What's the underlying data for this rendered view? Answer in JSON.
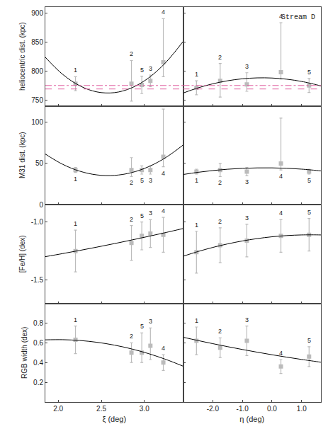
{
  "chart_data": [
    {
      "type": "scatter",
      "ylabel": "heliocentric dist. (kpc)",
      "grid": false,
      "tick_labels": "y",
      "xlim": [
        1.85,
        3.45
      ],
      "xticks": [
        {
          "value": 2.0,
          "label": "2.0"
        },
        2.5,
        {
          "value": 3.0,
          "label": "3.0"
        }
      ],
      "ylim": [
        740,
        910
      ],
      "yticks": [
        750,
        800,
        850,
        900
      ],
      "series": [
        {
          "type": "scatter",
          "marker": "square",
          "color": "#bbbbbb",
          "x": [
            2.2,
            2.85,
            2.97,
            3.07,
            3.22
          ],
          "values": [
            778,
            778,
            776,
            783,
            815
          ],
          "error_minus": [
            12,
            30,
            15,
            10,
            25
          ],
          "error_plus": [
            12,
            40,
            15,
            10,
            75
          ],
          "point_labels": [
            "1",
            "2",
            "5",
            "3",
            "4"
          ],
          "label_position": "above"
        },
        {
          "type": "line",
          "line_style": "solid",
          "color": "#000000",
          "x": [
            1.85,
            2.05,
            2.25,
            2.45,
            2.65,
            2.85,
            3.05,
            3.25,
            3.45
          ],
          "values": [
            823.53,
            794.34,
            774.46,
            763.9,
            762.66,
            770.74,
            788.14,
            814.86,
            850.9
          ]
        },
        {
          "type": "hline",
          "line_style": "dashdot",
          "color": "#E060A0",
          "values": [
            775
          ]
        },
        {
          "type": "hline",
          "line_style": "dash",
          "color": "#E060A0",
          "values": [
            769
          ]
        }
      ]
    },
    {
      "type": "scatter",
      "grid": false,
      "tick_labels": false,
      "annotations": [
        {
          "text": "Stream D"
        }
      ],
      "xlim": [
        -3.0,
        1.65
      ],
      "xticks": [
        {
          "value": -2.0,
          "label": "-2.0"
        },
        {
          "value": -1.0,
          "label": "-1.0"
        },
        {
          "value": 0.0,
          "label": "0.0"
        },
        {
          "value": 1.0,
          "label": "1.0"
        }
      ],
      "ylim": [
        740,
        910
      ],
      "yticks": [
        750,
        800,
        850,
        900
      ],
      "series": [
        {
          "type": "scatter",
          "marker": "square",
          "color": "#bbbbbb",
          "x": [
            -2.55,
            -1.75,
            -0.85,
            0.3,
            1.25
          ],
          "values": [
            771,
            783,
            777,
            798,
            775
          ],
          "error_minus": [
            12,
            28,
            12,
            12,
            12
          ],
          "error_plus": [
            12,
            30,
            20,
            85,
            12
          ],
          "point_labels": [
            "1",
            "2",
            "3",
            "4",
            "5"
          ],
          "label_position": "above"
        },
        {
          "type": "line",
          "line_style": "solid",
          "color": "#000000",
          "x": [
            -3.0,
            -2.5,
            -2.0,
            -1.5,
            -1.0,
            -0.5,
            0.0,
            0.5,
            1.0,
            1.5,
            1.65
          ],
          "values": [
            761.99,
            770.85,
            777.9,
            783.12,
            786.53,
            788.11,
            787.87,
            785.81,
            781.94,
            776.24,
            774.17
          ]
        },
        {
          "type": "hline",
          "line_style": "dashdot",
          "color": "#E060A0",
          "values": [
            775
          ]
        },
        {
          "type": "hline",
          "line_style": "dash",
          "color": "#E060A0",
          "values": [
            769
          ]
        }
      ]
    },
    {
      "type": "scatter",
      "ylabel": "M31 dist. (kpc)",
      "grid": false,
      "tick_labels": "y",
      "xlim": [
        1.85,
        3.45
      ],
      "xticks": [
        {
          "value": 2.0,
          "label": "2.0"
        },
        2.5,
        {
          "value": 3.0,
          "label": "3.0"
        }
      ],
      "ylim": [
        0,
        120
      ],
      "yticks": [
        0,
        50,
        100
      ],
      "series": [
        {
          "type": "scatter",
          "marker": "square",
          "color": "#bbbbbb",
          "x": [
            2.2,
            2.85,
            2.97,
            3.07,
            3.22
          ],
          "values": [
            42,
            42,
            42,
            42,
            58
          ],
          "error_minus": [
            3,
            8,
            5,
            5,
            12
          ],
          "error_plus": [
            3,
            15,
            5,
            5,
            58
          ],
          "point_labels": [
            "1",
            "2",
            "5",
            "3",
            "4"
          ],
          "label_position": "below"
        },
        {
          "type": "line",
          "line_style": "solid",
          "color": "#000000",
          "x": [
            1.85,
            2.05,
            2.25,
            2.45,
            2.65,
            2.85,
            3.05,
            3.25,
            3.45
          ],
          "values": [
            61.36,
            48.98,
            40.54,
            36.02,
            35.43,
            38.77,
            46.04,
            57.24,
            72.38
          ]
        }
      ]
    },
    {
      "type": "scatter",
      "grid": false,
      "tick_labels": false,
      "xlim": [
        -3.0,
        1.65
      ],
      "xticks": [
        {
          "value": -2.0,
          "label": "-2.0"
        },
        {
          "value": -1.0,
          "label": "-1.0"
        },
        {
          "value": 0.0,
          "label": "0.0"
        },
        {
          "value": 1.0,
          "label": "1.0"
        }
      ],
      "ylim": [
        0,
        120
      ],
      "yticks": [
        0,
        50,
        100
      ],
      "series": [
        {
          "type": "scatter",
          "marker": "square",
          "color": "#bbbbbb",
          "x": [
            -2.55,
            -1.75,
            -0.85,
            0.3,
            1.25
          ],
          "values": [
            40,
            42,
            40,
            50,
            40
          ],
          "error_minus": [
            3,
            8,
            5,
            8,
            3
          ],
          "error_plus": [
            3,
            8,
            5,
            55,
            3
          ],
          "point_labels": [
            "1",
            "2",
            "3",
            "4",
            "5"
          ],
          "label_position": "below"
        },
        {
          "type": "line",
          "line_style": "solid",
          "color": "#000000",
          "x": [
            -3.0,
            -2.5,
            -2.0,
            -1.5,
            -1.0,
            -0.5,
            0.0,
            0.5,
            1.0,
            1.5,
            1.65
          ],
          "values": [
            36.51,
            39.19,
            41.33,
            42.94,
            44.02,
            44.57,
            44.59,
            44.08,
            43.03,
            41.46,
            40.88
          ]
        }
      ]
    },
    {
      "type": "scatter",
      "ylabel": "[Fe/H] (dex)",
      "grid": false,
      "tick_labels": "y",
      "xlim": [
        1.85,
        3.45
      ],
      "xticks": [
        {
          "value": 2.0,
          "label": "2.0"
        },
        2.5,
        {
          "value": 3.0,
          "label": "3.0"
        }
      ],
      "ylim": [
        -1.7,
        -0.85
      ],
      "yticks": [
        -1.5,
        {
          "value": -1.0,
          "label": "-1.0"
        }
      ],
      "series": [
        {
          "type": "scatter",
          "marker": "square",
          "color": "#bbbbbb",
          "x": [
            2.2,
            2.85,
            2.97,
            3.07,
            3.22
          ],
          "values": [
            -1.25,
            -1.18,
            -1.12,
            -1.1,
            -1.11
          ],
          "error": [
            0.18,
            0.15,
            0.12,
            0.12,
            0.15
          ],
          "point_labels": [
            "1",
            "2",
            "5",
            "3",
            "4"
          ],
          "label_position": "above"
        },
        {
          "type": "line",
          "line_style": "solid",
          "color": "#000000",
          "x": [
            1.85,
            2.05,
            2.25,
            2.45,
            2.65,
            2.85,
            3.05,
            3.25,
            3.45
          ],
          "values": [
            -1.2986,
            -1.2723,
            -1.2448,
            -1.2162,
            -1.1865,
            -1.1557,
            -1.1237,
            -1.0906,
            -1.0563
          ]
        }
      ]
    },
    {
      "type": "scatter",
      "grid": false,
      "tick_labels": false,
      "xlim": [
        -3.0,
        1.65
      ],
      "xticks": [
        {
          "value": -2.0,
          "label": "-2.0"
        },
        {
          "value": -1.0,
          "label": "-1.0"
        },
        {
          "value": 0.0,
          "label": "0.0"
        },
        {
          "value": 1.0,
          "label": "1.0"
        }
      ],
      "ylim": [
        -1.7,
        -0.85
      ],
      "yticks": [
        -1.5,
        {
          "value": -1.0,
          "label": "-1.0"
        }
      ],
      "series": [
        {
          "type": "scatter",
          "marker": "square",
          "color": "#bbbbbb",
          "x": [
            -2.55,
            -1.75,
            -0.85,
            0.3,
            1.25
          ],
          "values": [
            -1.26,
            -1.2,
            -1.16,
            -1.12,
            -1.11
          ],
          "error": [
            0.18,
            0.15,
            0.14,
            0.14,
            0.14
          ],
          "point_labels": [
            "1",
            "2",
            "3",
            "4",
            "5"
          ],
          "label_position": "above"
        },
        {
          "type": "line",
          "line_style": "solid",
          "color": "#000000",
          "x": [
            -3.0,
            -2.5,
            -2.0,
            -1.5,
            -1.0,
            -0.5,
            0.0,
            0.5,
            1.0,
            1.5,
            1.65
          ],
          "values": [
            -1.2949,
            -1.2546,
            -1.2192,
            -1.1888,
            -1.1634,
            -1.143,
            -1.1275,
            -1.117,
            -1.1115,
            -1.1109,
            -1.1117
          ]
        }
      ]
    },
    {
      "type": "scatter",
      "ylabel": "RGB width (dex)",
      "xlabel": "ξ (deg)",
      "grid": false,
      "xlim": [
        1.85,
        3.45
      ],
      "xticks": [
        {
          "value": 2.0,
          "label": "2.0"
        },
        2.5,
        {
          "value": 3.0,
          "label": "3.0"
        }
      ],
      "ylim": [
        0.0,
        1.0
      ],
      "yticks": [
        0.2,
        0.4,
        0.6,
        0.8
      ],
      "series": [
        {
          "type": "scatter",
          "marker": "square",
          "color": "#bbbbbb",
          "x": [
            2.2,
            2.85,
            2.97,
            3.07,
            3.22
          ],
          "values": [
            0.63,
            0.5,
            0.5,
            0.57,
            0.4
          ],
          "error_minus": [
            0.14,
            0.1,
            0.1,
            0.14,
            0.08
          ],
          "error_plus": [
            0.14,
            0.1,
            0.2,
            0.18,
            0.08
          ],
          "point_labels": [
            "1",
            "2",
            "5",
            "3",
            "4"
          ],
          "label_position": "above"
        },
        {
          "type": "line",
          "line_style": "solid",
          "color": "#000000",
          "x": [
            1.85,
            2.05,
            2.25,
            2.45,
            2.65,
            2.85,
            3.05,
            3.25,
            3.45
          ],
          "values": [
            0.6298,
            0.6315,
            0.6232,
            0.6049,
            0.5766,
            0.5382,
            0.4898,
            0.4314,
            0.363
          ]
        }
      ]
    },
    {
      "type": "scatter",
      "xlabel": "η (deg)",
      "grid": false,
      "tick_labels": "x",
      "xlim": [
        -3.0,
        1.65
      ],
      "xticks": [
        {
          "value": -2.0,
          "label": "-2.0"
        },
        {
          "value": -1.0,
          "label": "-1.0"
        },
        {
          "value": 0.0,
          "label": "0.0"
        },
        {
          "value": 1.0,
          "label": "1.0"
        }
      ],
      "ylim": [
        0.0,
        1.0
      ],
      "yticks": [
        0.2,
        0.4,
        0.6,
        0.8
      ],
      "series": [
        {
          "type": "scatter",
          "marker": "square",
          "color": "#bbbbbb",
          "x": [
            -2.55,
            -1.75,
            -0.85,
            0.3,
            1.25
          ],
          "values": [
            0.62,
            0.55,
            0.62,
            0.36,
            0.46
          ],
          "error_minus": [
            0.14,
            0.1,
            0.15,
            0.07,
            0.1
          ],
          "error_plus": [
            0.14,
            0.1,
            0.15,
            0.07,
            0.1
          ],
          "point_labels": [
            "1",
            "2",
            "3",
            "4",
            "5"
          ],
          "label_position": "above"
        },
        {
          "type": "line",
          "line_style": "solid",
          "color": "#000000",
          "x": [
            -3.0,
            -2.5,
            -2.0,
            -1.5,
            -1.0,
            -0.5,
            0.0,
            0.5,
            1.0,
            1.5,
            1.65
          ],
          "values": [
            0.6561,
            0.6229,
            0.5912,
            0.5609,
            0.5321,
            0.5047,
            0.4788,
            0.4543,
            0.4312,
            0.4096,
            0.4034
          ]
        }
      ]
    }
  ]
}
